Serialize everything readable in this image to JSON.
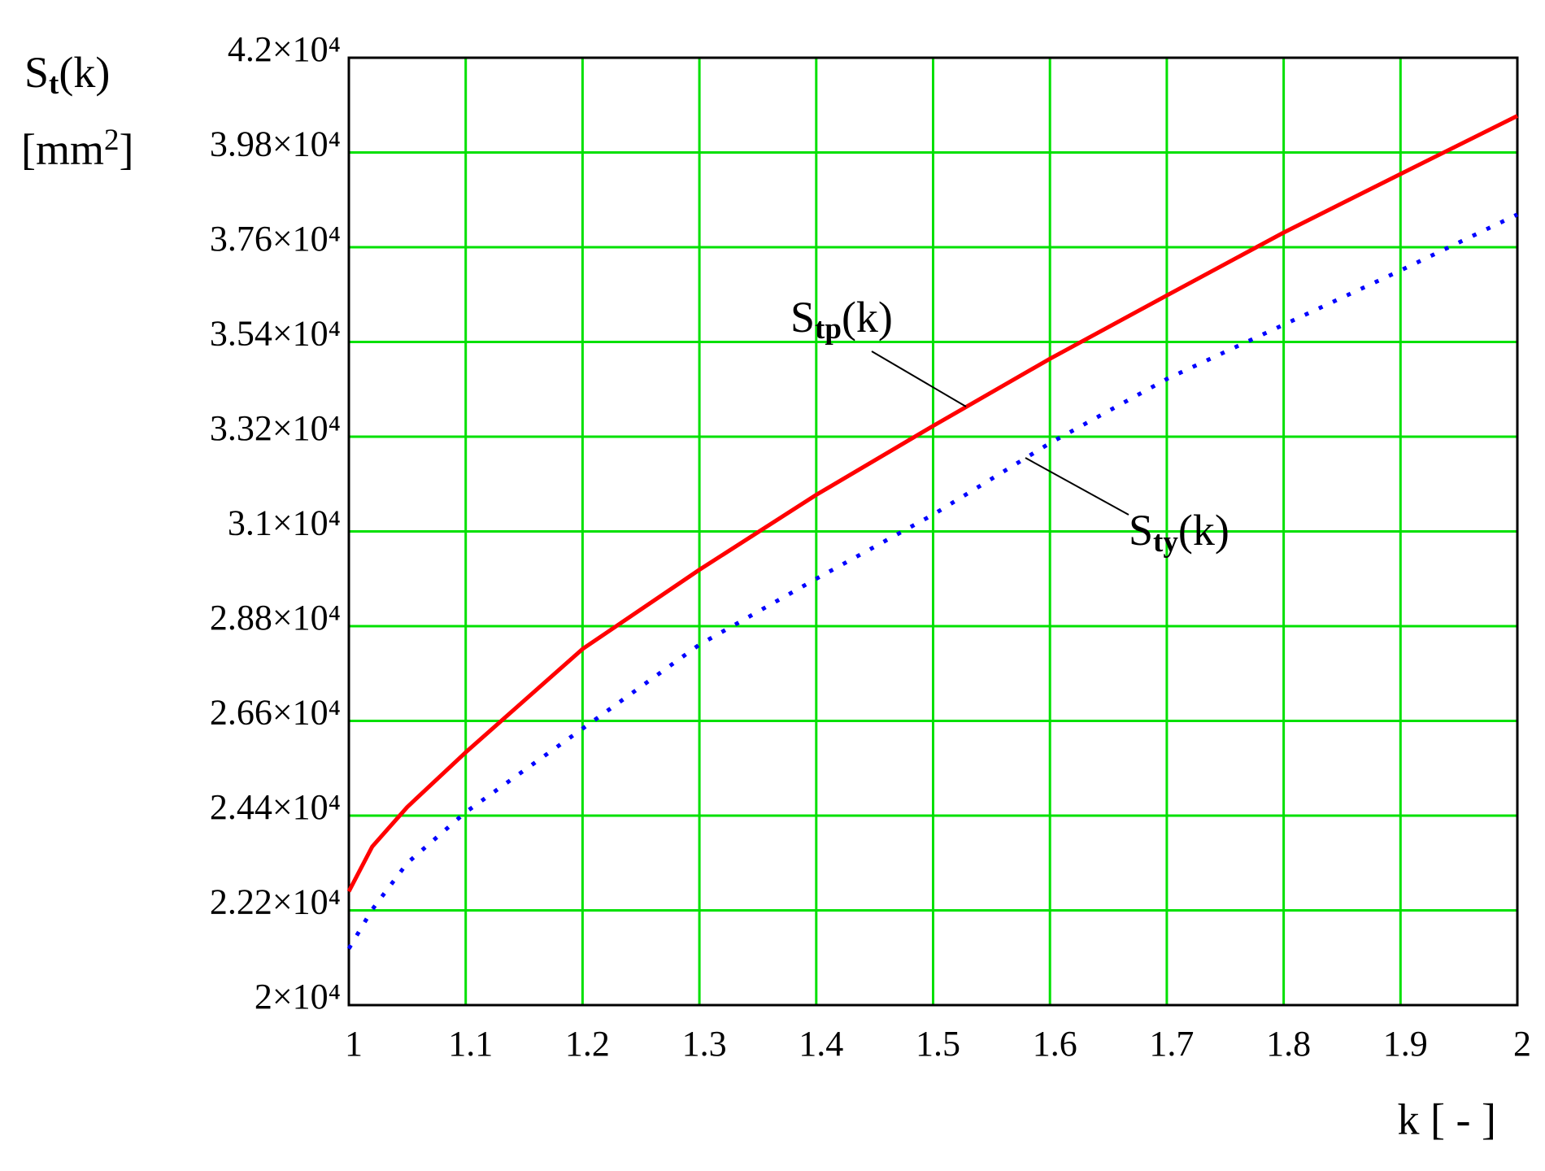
{
  "chart_data": {
    "type": "line",
    "ylabel": {
      "base": "S",
      "sub": "t",
      "arg": "(k)"
    },
    "ylabel_units": {
      "base": "[mm",
      "sup": "2",
      "end": "]"
    },
    "xlabel": "k [ - ]",
    "x": [
      1,
      1.02,
      1.05,
      1.1,
      1.2,
      1.3,
      1.4,
      1.5,
      1.6,
      1.7,
      1.8,
      1.9,
      2
    ],
    "series": [
      {
        "color": "#ff0000",
        "style": "solid",
        "values": [
          22640,
          23680,
          24600,
          25870,
          28270,
          30110,
          31850,
          33450,
          35010,
          36480,
          37940,
          39300,
          40650
        ]
      },
      {
        "color": "#0000ff",
        "style": "dotted",
        "values": [
          21310,
          22220,
          23300,
          24480,
          26420,
          28370,
          29900,
          31390,
          33050,
          34540,
          35800,
          37060,
          38360
        ]
      }
    ],
    "annotations": [
      {
        "base": "S",
        "sub": "tp",
        "arg": "(k)"
      },
      {
        "base": "S",
        "sub": "ty",
        "arg": "(k)"
      }
    ],
    "xlim": [
      1,
      2
    ],
    "xticks": [
      1,
      1.1,
      1.2,
      1.3,
      1.4,
      1.5,
      1.6,
      1.7,
      1.8,
      1.9,
      2
    ],
    "ylim": [
      20000,
      42000
    ],
    "yticks": [
      {
        "value": 20000,
        "label": "2×10⁴"
      },
      {
        "value": 22200,
        "label": "2.22×10⁴"
      },
      {
        "value": 24400,
        "label": "2.44×10⁴"
      },
      {
        "value": 26600,
        "label": "2.66×10⁴"
      },
      {
        "value": 28800,
        "label": "2.88×10⁴"
      },
      {
        "value": 31000,
        "label": "3.1×10⁴"
      },
      {
        "value": 33200,
        "label": "3.32×10⁴"
      },
      {
        "value": 35400,
        "label": "3.54×10⁴"
      },
      {
        "value": 37600,
        "label": "3.76×10⁴"
      },
      {
        "value": 39800,
        "label": "3.98×10⁴"
      },
      {
        "value": 42000,
        "label": "4.2×10⁴"
      }
    ],
    "grid": true,
    "grid_color": "#00e000"
  }
}
